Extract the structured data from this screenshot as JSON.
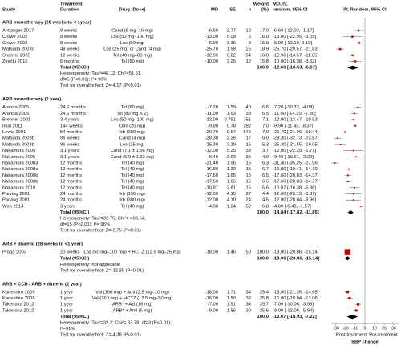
{
  "chart_data": {
    "type": "forest",
    "headers": [
      [
        "Study"
      ],
      [
        "Treatment",
        "Duration"
      ],
      [
        "Drug (Dose)"
      ],
      [
        "MD"
      ],
      [
        "SE"
      ],
      [
        "n"
      ],
      [
        "Weight",
        "(%)"
      ],
      [
        "MD, IV,",
        "random, 95% CI"
      ]
    ],
    "plot_title": "IV, Random, 95% CI",
    "color": "#c00000",
    "xlim": [
      -35,
      35
    ],
    "xticks": [
      -30,
      -20,
      -10,
      0,
      10,
      20,
      30
    ],
    "side_labels": [
      "Post-treatment",
      "Pre-treatment"
    ],
    "xlabel": "SBP change",
    "groups": [
      {
        "title": "ARB monotherapy (28 weeks to < 1year)",
        "rows": [
          {
            "cells": [
              "Antlanger 2017",
              "8 weeks",
              "Cand (8 mg–16 mg)",
              "-6.60",
              "2.77",
              "12",
              "17.0",
              "-6.60 [-12.03, -1.17]"
            ],
            "md": -6.6,
            "lo": -12.03,
            "hi": -1.17,
            "weight": 17.0
          },
          {
            "cells": [
              "Crowe 2003",
              "8 weeks",
              "Los (50 mg–100 mg)",
              "-13.00",
              "5.08",
              "6",
              "16.0",
              "-13.00 [-22.95, -3.05]"
            ],
            "md": -13.0,
            "lo": -22.95,
            "hi": -3.05,
            "weight": 16.0
          },
          {
            "cells": [
              "Crowe 2003",
              "8 weeks",
              "Los (50 mg)",
              "-6.00",
              "3.16",
              "9",
              "16.9",
              "-6.00 [-12.19, 0.19]"
            ],
            "md": -6.0,
            "lo": -12.19,
            "hi": 0.19,
            "weight": 16.9
          },
          {
            "cells": [
              "Matsuda 2003a",
              "48 weeks",
              "Los (25 mg) or Cand (4 mg)",
              "-25.70",
              "1.98",
              "25",
              "18.9",
              "-25.70 [-29.57, -21.83]"
            ],
            "md": -25.7,
            "lo": -29.57,
            "hi": -21.83,
            "weight": 18.9
          },
          {
            "cells": [
              "Sharma 2005",
              "12 weeks",
              "Tel (40 mg–80 mg)",
              "-12.96",
              "0.82",
              "54",
              "16.0",
              "-12.96 [-14.57, -11.35]"
            ],
            "md": -12.96,
            "lo": -14.57,
            "hi": -11.35,
            "weight": 16.0
          },
          {
            "cells": [
              "Zinellu 2016",
              "6 months",
              "Tel (80 mg)",
              "-10.00",
              "3.25",
              "12",
              "15.8",
              "-10.00 [-16.38, -3.62]"
            ],
            "md": -10.0,
            "lo": -16.38,
            "hi": -3.62,
            "weight": 15.8
          }
        ],
        "total": {
          "cells": [
            "Total (95%CI)",
            "100.0",
            "-12.60 [-18.53, -6.67]"
          ],
          "md": -12.6,
          "lo": -18.53,
          "hi": -6.67
        },
        "notes": [
          "Heterogeneity: Tau²=46.12; Chi²=51.51,",
          "df=5 (P<0.01); I²= 90%",
          "Test for overall effect: Z=-4.17 (P<0.01)"
        ]
      },
      {
        "title": "ARB monotherapy (2 year)",
        "rows": [
          {
            "cells": [
              "Aranda 2005",
              "24.6 months",
              "Tel (80 mg)",
              "-7.20",
              "1.59",
              "40",
              "6.6",
              "-7.20 [-10.32, -4.08]"
            ],
            "md": -7.2,
            "lo": -10.32,
            "hi": -4.08,
            "weight": 6.6
          },
          {
            "cells": [
              "Aranda 2005",
              "24.6 months",
              "Tel (80 mg X 2)",
              "-11.00",
              "1.63",
              "38",
              "6.5",
              "-11.00 [-14.20, -7.80]"
            ],
            "md": -11.0,
            "lo": -14.2,
            "hi": -7.8,
            "weight": 6.5
          },
          {
            "cells": [
              "Brenner 2001",
              "3.4 years",
              "Los (50 mg–100 mg)",
              "-12.00",
              "0.751",
              "751",
              "7.1",
              "-12.00 [-13.47, -10.53]"
            ],
            "md": -12.0,
            "lo": -13.47,
            "hi": -10.53,
            "weight": 7.1
          },
          {
            "cells": [
              "Imai 2011",
              "144 weeks",
              "Olm (20 mg)",
              "-9.90",
              "0.78",
              "282",
              "7.0",
              "-9.90 [-11.43, -8.37]"
            ],
            "md": -9.9,
            "lo": -11.43,
            "hi": -8.37,
            "weight": 7.0
          },
          {
            "cells": [
              "Lewis 2001",
              "54 months",
              "Irb (300 mg)",
              "-20.70",
              "0.64",
              "579",
              "7.0",
              "-20.70 [-21.96, -19.44]"
            ],
            "md": -20.7,
            "lo": -21.96,
            "hi": -19.44,
            "weight": 7.0
          },
          {
            "cells": [
              "Matsuda 2003b",
              "96 weeks",
              "Cand (4 mg)",
              "-28.30",
              "2.26",
              "17",
              "6.0",
              "-28.30 [-32.73, -23.87]"
            ],
            "md": -28.3,
            "lo": -32.73,
            "hi": -23.87,
            "weight": 6.0
          },
          {
            "cells": [
              "Matsuda 2003b",
              "96 weeks",
              "Los (25 mg)",
              "-25.30",
              "3.19",
              "15",
              "5.3",
              "-25.30 [-31.55, -19.05]"
            ],
            "md": -25.3,
            "lo": -31.55,
            "hi": -19.05,
            "weight": 5.3
          },
          {
            "cells": [
              "Nakamura 2005",
              "3.1 years",
              "Cand (7.1 ± 1.56 mg)",
              "-12.00",
              "5.25",
              "33",
              "3.7",
              "-12.00 [-22.29, -1.71]"
            ],
            "md": -12.0,
            "lo": -22.29,
            "hi": -1.71,
            "weight": 3.7
          },
          {
            "cells": [
              "Nakamura 2005",
              "3.1 years",
              "Cand (6.9 ± 1.22 mg)",
              "-9.40",
              "3.63",
              "36",
              "4.9",
              "-9.40 [-16.51, -2.29]"
            ],
            "md": -9.4,
            "lo": -16.51,
            "hi": -2.29,
            "weight": 4.9
          },
          {
            "cells": [
              "Nakamura 2008a",
              "12 months",
              "Tel (40 mg)",
              "-31.40",
              "1.96",
              "15",
              "6.3",
              "-31.40 [-35.25, -27.56]"
            ],
            "md": -31.4,
            "lo": -35.25,
            "hi": -27.56,
            "weight": 6.3
          },
          {
            "cells": [
              "Nakamura 2008a",
              "12 months",
              "Tel (40 mg)",
              "-16.80",
              "1.33",
              "15",
              "6.7",
              "-16.80 [-19.41, -14.19]"
            ],
            "md": -16.8,
            "lo": -19.41,
            "hi": -14.19,
            "weight": 6.7
          },
          {
            "cells": [
              "Nakamura 2008b",
              "12 months",
              "Tel (40 mg)",
              "-17.60",
              "1.65",
              "15",
              "6.5",
              "-17.60 [-20.83, -14.37]"
            ],
            "md": -17.6,
            "lo": -20.83,
            "hi": -14.37,
            "weight": 6.5
          },
          {
            "cells": [
              "Nakamura 2008b",
              "12 months",
              "Tel (40 mg)",
              "-17.60",
              "1.65",
              "15",
              "6.5",
              "-17.60 [-20.83, -14.37]"
            ],
            "md": -17.6,
            "lo": -20.83,
            "hi": -14.37,
            "weight": 6.5
          },
          {
            "cells": [
              "Nakamura 2010",
              "12 months",
              "Tel (40 mg)",
              "-10.87",
              "2.81",
              "15",
              "5.6",
              "-10.87 [-16.38, -5.36]"
            ],
            "md": -10.87,
            "lo": -16.38,
            "hi": -5.36,
            "weight": 5.6
          },
          {
            "cells": [
              "Parving 2001",
              "24 months",
              "Irb (150 mg)",
              "-12.00",
              "4.15",
              "27",
              "4.4",
              "-12.00 [-20.13, -3.87]"
            ],
            "md": -12.0,
            "lo": -20.13,
            "hi": -3.87,
            "weight": 4.4
          },
          {
            "cells": [
              "Parving 2001",
              "24 months",
              "Irb (300 mg)",
              "-12.00",
              "4.10",
              "24",
              "4.5",
              "-12.00 [-20.04, -3.96]"
            ],
            "md": -12.0,
            "lo": -20.04,
            "hi": -3.96,
            "weight": 4.5
          },
          {
            "cells": [
              "Woo 2014",
              "3 years",
              "Tel (40 mg)",
              "-4.00",
              "1.24",
              "52",
              "6.8",
              "-4.00 [-6.43, -1.57]"
            ],
            "md": -4.0,
            "lo": -6.43,
            "hi": -1.57,
            "weight": 6.8
          }
        ],
        "total": {
          "cells": [
            "Total (95%CI)",
            "100.0",
            "-14.84 [-17.82, -11.85]"
          ],
          "md": -14.84,
          "lo": -17.82,
          "hi": -11.85
        },
        "notes": [
          "Heterogeneity: Tau²=32.75; Chi²= 408.54,",
          "df=15 (P<0.01); I²= 96%",
          "Test for overall effect: Z=-9.75 (P<0.01)"
        ]
      },
      {
        "title": "ARB + diuretic (28 weeks to <1 year)",
        "rows": [
          {
            "cells": [
              "Praga 2003",
              "20 weeks",
              "Los (50 mg–100 mg) + HCTZ (12.5 mg–25 mg)",
              "-18.00",
              "1.46",
              "50",
              "100.0",
              "-18.00 [-20.86, -15.14]"
            ],
            "md": -18.0,
            "lo": -20.86,
            "hi": -15.14,
            "weight": 100.0
          }
        ],
        "total": {
          "cells": [
            "Total (95%CI)",
            "100.0",
            "-18.00 [-20.86, -15.14]"
          ],
          "md": -18.0,
          "lo": -20.86,
          "hi": -15.14
        },
        "notes": [
          "Heterogeneity: not applicable",
          "Test for overall effect: Z=-12.35 (P<0.01)"
        ]
      },
      {
        "title": "ARB + CCB / ARB + diuretic (2 year)",
        "rows": [
          {
            "cells": [
              "Kaneshiro 2009",
              "1 year",
              "Val (160 mg) + Aml (2.5 mg–10 mg)",
              "-18.00",
              "1.71",
              "34",
              "25.4",
              "-18.00 [-21.35, -14.65]"
            ],
            "md": -18.0,
            "lo": -21.35,
            "hi": -14.65,
            "weight": 25.4
          },
          {
            "cells": [
              "Kaneshiro 2009",
              "1 year",
              "Val (160 mg) + HCTZ (12.5 mg–50 mg)",
              "-16.00",
              "1.50",
              "32",
              "25.8",
              "-16.00 [-18.94, -13.06]"
            ],
            "md": -16.0,
            "lo": -18.94,
            "hi": -13.06,
            "weight": 25.8
          },
          {
            "cells": [
              "Takenaka 2012",
              "1 year",
              "ARB* + Azl (16 mg)",
              "-7.00",
              "1.51",
              "34",
              "25.7",
              "-7.00 [-10.06, -3.96]"
            ],
            "md": -7.0,
            "lo": -10.06,
            "hi": -3.96,
            "weight": 25.7
          },
          {
            "cells": [
              "Takenaka 2012",
              "1 year",
              "ARB* + Aml (5 mg)",
              "-9.00",
              "1.56",
              "30",
              "25.6",
              "-9.00 [-12.06, -5.94]"
            ],
            "md": -9.0,
            "lo": -12.06,
            "hi": -5.94,
            "weight": 25.6
          }
        ],
        "total": {
          "cells": [
            "Total (95%CI)",
            "100.0",
            "-13.07 [-18.93, -7.22]"
          ],
          "md": -13.07,
          "lo": -18.93,
          "hi": -7.22
        },
        "notes": [
          "Heterogeneity: Tau²=32.2; Chi²= 33.78, df=3 (P<0.01);",
          "I²=91%",
          "Test for overall effect: Z=-4.38 (P<0.01)"
        ]
      }
    ]
  }
}
